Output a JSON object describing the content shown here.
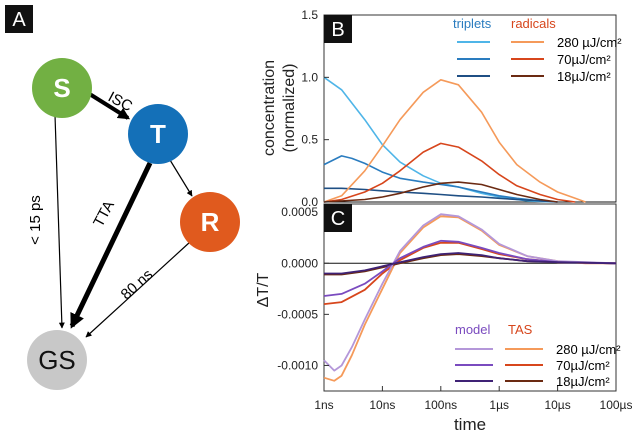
{
  "colors": {
    "S": "#72b043",
    "T": "#1470b8",
    "R": "#e05a1e",
    "GS": "#c8c8c8",
    "triplet_280": "#4fb5e8",
    "triplet_70": "#2a7cbf",
    "triplet_18": "#1f4f84",
    "radical_280": "#f59a5a",
    "radical_70": "#d7461c",
    "radical_18": "#6b2a12",
    "model_280": "#b497d9",
    "model_70": "#7a4bbf",
    "model_18": "#3f2275"
  },
  "diagram": {
    "panel_label": "A",
    "nodes": {
      "S": "S",
      "T": "T",
      "R": "R",
      "GS": "GS"
    },
    "edges": {
      "isc": "ISC",
      "tta": "TTA",
      "s_gs": "< 15 ps",
      "r_gs": "80 ns"
    }
  },
  "chart_data": [
    {
      "type": "line",
      "panel_label": "B",
      "xscale": "log",
      "xlim_seconds": [
        1e-09,
        0.0001
      ],
      "ylim": [
        0,
        1.5
      ],
      "yticks": [
        "0.0",
        "0.5",
        "1.0",
        "1.5"
      ],
      "ylabel_line1": "concentration",
      "ylabel_line2": "(normalized)",
      "legend": {
        "col1": "triplets",
        "col2": "radicals",
        "rows": [
          "280 µJ/cm²",
          "70µJ/cm²",
          "18µJ/cm²"
        ]
      },
      "series": [
        {
          "group": "triplets",
          "fluence": "280 µJ/cm²",
          "color_key": "triplet_280",
          "x": [
            1e-09,
            2e-09,
            5e-09,
            1e-08,
            2e-08,
            5e-08,
            1e-07,
            2e-07,
            5e-07,
            1e-06,
            2e-06,
            3e-06,
            5e-06,
            1e-05
          ],
          "y": [
            1.0,
            0.9,
            0.66,
            0.46,
            0.32,
            0.21,
            0.15,
            0.12,
            0.07,
            0.04,
            0.02,
            0.01,
            0.005,
            0.0
          ]
        },
        {
          "group": "triplets",
          "fluence": "70µJ/cm²",
          "color_key": "triplet_70",
          "x": [
            1e-09,
            2e-09,
            3e-09,
            5e-09,
            1e-08,
            2e-08,
            5e-08,
            1e-07,
            2e-07,
            5e-07,
            1e-06,
            2e-06,
            5e-06,
            1e-05
          ],
          "y": [
            0.3,
            0.37,
            0.35,
            0.31,
            0.24,
            0.19,
            0.16,
            0.14,
            0.12,
            0.08,
            0.05,
            0.03,
            0.01,
            0.0
          ]
        },
        {
          "group": "triplets",
          "fluence": "18µJ/cm²",
          "color_key": "triplet_18",
          "x": [
            1e-09,
            2e-09,
            5e-09,
            1e-08,
            2e-08,
            5e-08,
            1e-07,
            2e-07,
            5e-07,
            1e-06,
            2e-06,
            5e-06,
            1e-05
          ],
          "y": [
            0.11,
            0.11,
            0.1,
            0.09,
            0.08,
            0.07,
            0.06,
            0.05,
            0.04,
            0.03,
            0.02,
            0.01,
            0.0
          ]
        },
        {
          "group": "radicals",
          "fluence": "280 µJ/cm²",
          "color_key": "radical_280",
          "x": [
            1e-09,
            2e-09,
            5e-09,
            1e-08,
            2e-08,
            5e-08,
            1e-07,
            2e-07,
            5e-07,
            1e-06,
            2e-06,
            5e-06,
            1e-05,
            2e-05,
            3e-05
          ],
          "y": [
            0.0,
            0.05,
            0.25,
            0.45,
            0.66,
            0.88,
            0.98,
            0.94,
            0.72,
            0.48,
            0.3,
            0.16,
            0.08,
            0.03,
            0.0
          ]
        },
        {
          "group": "radicals",
          "fluence": "70µJ/cm²",
          "color_key": "radical_70",
          "x": [
            1e-09,
            2e-09,
            5e-09,
            1e-08,
            2e-08,
            5e-08,
            1e-07,
            2e-07,
            5e-07,
            1e-06,
            2e-06,
            5e-06,
            1e-05,
            2e-05
          ],
          "y": [
            0.0,
            0.02,
            0.08,
            0.15,
            0.25,
            0.4,
            0.47,
            0.44,
            0.33,
            0.22,
            0.13,
            0.06,
            0.02,
            0.0
          ]
        },
        {
          "group": "radicals",
          "fluence": "18µJ/cm²",
          "color_key": "radical_18",
          "x": [
            1e-09,
            5e-09,
            1e-08,
            2e-08,
            5e-08,
            1e-07,
            2e-07,
            5e-07,
            1e-06,
            2e-06,
            5e-06,
            1e-05
          ],
          "y": [
            0.0,
            0.02,
            0.04,
            0.07,
            0.12,
            0.15,
            0.16,
            0.14,
            0.1,
            0.06,
            0.02,
            0.0
          ]
        }
      ]
    },
    {
      "type": "line",
      "panel_label": "C",
      "xscale": "log",
      "xlim_seconds": [
        1e-09,
        0.0001
      ],
      "ylim": [
        -0.00125,
        0.00058
      ],
      "yticks": [
        "0.0005",
        "0.0000",
        "-0.0005",
        "-0.0010"
      ],
      "ylabel": "ΔT/T",
      "xlabel": "time",
      "xticks": [
        "1ns",
        "10ns",
        "100ns",
        "1µs",
        "10µs",
        "100µs"
      ],
      "legend": {
        "col1": "model",
        "col2": "TAS",
        "rows": [
          "280 µJ/cm²",
          "70µJ/cm²",
          "18µJ/cm²"
        ]
      },
      "series": [
        {
          "group": "TAS",
          "fluence": "280 µJ/cm²",
          "color_key": "radical_280",
          "x": [
            1e-09,
            1.5e-09,
            2e-09,
            3e-09,
            5e-09,
            1e-08,
            2e-08,
            5e-08,
            1e-07,
            2e-07,
            5e-07,
            1e-06,
            3e-06,
            1e-05,
            3e-05,
            0.0001
          ],
          "y": [
            -0.00112,
            -0.00115,
            -0.0011,
            -0.0009,
            -0.0006,
            -0.00025,
            0.0001,
            0.00035,
            0.00046,
            0.00045,
            0.00032,
            0.00018,
            7e-05,
            2e-05,
            0.0,
            0.0
          ]
        },
        {
          "group": "TAS",
          "fluence": "70µJ/cm²",
          "color_key": "radical_70",
          "x": [
            1e-09,
            2e-09,
            5e-09,
            1e-08,
            2e-08,
            5e-08,
            1e-07,
            2e-07,
            5e-07,
            1e-06,
            3e-06,
            1e-05,
            0.0001
          ],
          "y": [
            -0.0004,
            -0.00038,
            -0.00026,
            -0.0001,
            3e-05,
            0.00015,
            0.0002,
            0.0002,
            0.00014,
            9e-05,
            4e-05,
            1e-05,
            0.0
          ]
        },
        {
          "group": "TAS",
          "fluence": "18µJ/cm²",
          "color_key": "radical_18",
          "x": [
            1e-09,
            2e-09,
            5e-09,
            1e-08,
            2e-08,
            5e-08,
            1e-07,
            2e-07,
            5e-07,
            1e-06,
            3e-06,
            1e-05,
            0.0001
          ],
          "y": [
            -0.00011,
            -0.00011,
            -8e-05,
            -4e-05,
            0.0,
            5e-05,
            8e-05,
            9e-05,
            7e-05,
            5e-05,
            2e-05,
            1e-05,
            0.0
          ]
        },
        {
          "group": "model",
          "fluence": "280 µJ/cm²",
          "color_key": "model_280",
          "x": [
            1e-09,
            1.5e-09,
            2e-09,
            3e-09,
            5e-09,
            1e-08,
            2e-08,
            5e-08,
            1e-07,
            2e-07,
            5e-07,
            1e-06,
            3e-06,
            1e-05,
            0.0001
          ],
          "y": [
            -0.00095,
            -0.00105,
            -0.001,
            -0.00082,
            -0.00055,
            -0.0002,
            0.00012,
            0.00037,
            0.00048,
            0.00046,
            0.00033,
            0.00019,
            7e-05,
            2e-05,
            0.0
          ]
        },
        {
          "group": "model",
          "fluence": "70µJ/cm²",
          "color_key": "model_70",
          "x": [
            1e-09,
            2e-09,
            5e-09,
            1e-08,
            2e-08,
            5e-08,
            1e-07,
            2e-07,
            5e-07,
            1e-06,
            3e-06,
            1e-05,
            0.0001
          ],
          "y": [
            -0.00032,
            -0.0003,
            -0.0002,
            -8e-05,
            5e-05,
            0.00016,
            0.00022,
            0.00021,
            0.00015,
            0.0001,
            4e-05,
            1e-05,
            0.0
          ]
        },
        {
          "group": "model",
          "fluence": "18µJ/cm²",
          "color_key": "model_18",
          "x": [
            1e-09,
            2e-09,
            5e-09,
            1e-08,
            2e-08,
            5e-08,
            1e-07,
            2e-07,
            5e-07,
            1e-06,
            3e-06,
            1e-05,
            0.0001
          ],
          "y": [
            -0.0001,
            -0.0001,
            -7e-05,
            -3e-05,
            1e-05,
            6e-05,
            9e-05,
            0.0001,
            8e-05,
            5e-05,
            2e-05,
            1e-05,
            0.0
          ]
        }
      ]
    }
  ]
}
